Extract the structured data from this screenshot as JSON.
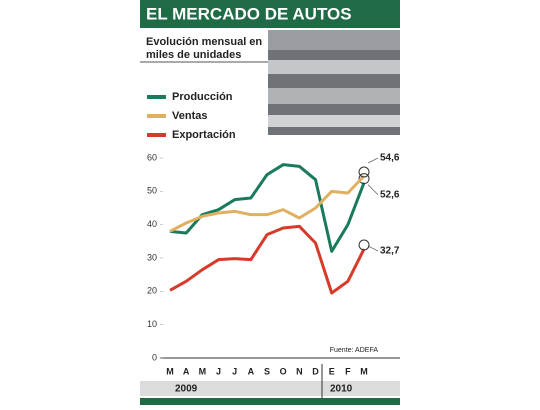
{
  "chart_data": {
    "type": "line",
    "title": "EL MERCADO DE AUTOS",
    "subtitle": "Evolución mensual en miles de unidades",
    "source": "Fuente: ADEFA",
    "categories": [
      "M",
      "A",
      "M",
      "J",
      "J",
      "A",
      "S",
      "O",
      "N",
      "D",
      "E",
      "F",
      "M"
    ],
    "year_labels": [
      "2009",
      "2010"
    ],
    "ylim": [
      0,
      60
    ],
    "yticks": [
      0,
      10,
      20,
      30,
      40,
      50,
      60
    ],
    "series": [
      {
        "name": "Producción",
        "color": "#1a7a5e",
        "values": [
          38,
          37.5,
          43,
          44.5,
          47.5,
          48,
          55,
          58,
          57.5,
          53.5,
          32,
          40,
          52.6
        ],
        "end_label": "52,6"
      },
      {
        "name": "Ventas",
        "color": "#e0b060",
        "values": [
          38,
          40.5,
          42.5,
          43.5,
          44,
          43,
          43,
          44.5,
          42,
          45,
          50,
          49.5,
          54.6
        ],
        "end_label": "54,6"
      },
      {
        "name": "Exportación",
        "color": "#d63a2a",
        "values": [
          20.3,
          23,
          26.5,
          29.5,
          29.8,
          29.5,
          37,
          39,
          39.5,
          34.5,
          19.5,
          23,
          32.7
        ],
        "end_label": "32,7"
      }
    ]
  }
}
